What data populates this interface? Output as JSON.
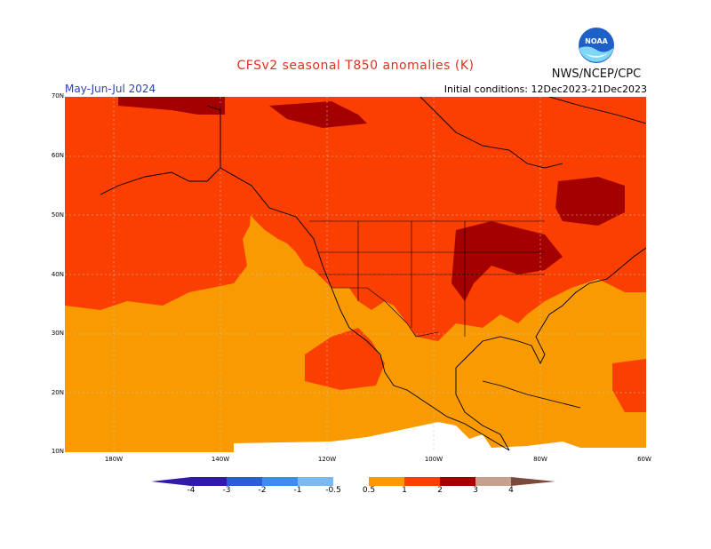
{
  "header": {
    "title": "CFSv2 seasonal T850 anomalies (K)",
    "season": "May-Jun-Jul 2024",
    "initial_conditions": "Initial conditions: 12Dec2023-21Dec2023",
    "agency": "NWS/NCEP/CPC",
    "logo_text": "NOAA"
  },
  "map": {
    "projection": "cylindrical",
    "lon_range": [
      -190,
      -60
    ],
    "lat_range": [
      10,
      70
    ],
    "lat_ticks": [
      "70N",
      "60N",
      "50N",
      "40N",
      "30N",
      "20N",
      "10N"
    ],
    "lon_ticks": [
      "180W",
      "140W",
      "120W",
      "100W",
      "80W",
      "60W"
    ],
    "background_color": "#f99b00",
    "regions": [
      {
        "category": "1 to 2",
        "color": "#fb3f00",
        "description": "northern Pacific, Alaska, Canada"
      },
      {
        "category": "2 to 3",
        "color": "#a50000",
        "description": "northern Canada, Quebec, Great Lakes"
      },
      {
        "category": "0.5 to 1",
        "color": "#f99b00",
        "description": "subtropical Pacific, western US, Gulf of Mexico"
      },
      {
        "category": "-0.5 to 0.5",
        "color": "#ffffff",
        "description": "tropical eastern Pacific"
      }
    ]
  },
  "legend": {
    "labels": [
      "-4",
      "-3",
      "-2",
      "-1",
      "-0.5",
      "0.5",
      "1",
      "2",
      "3",
      "4"
    ],
    "colors": [
      "#3219a7",
      "#2a5fd0",
      "#3d8ee8",
      "#7ab9f2",
      "#ffffff",
      "#f99b00",
      "#fb3f00",
      "#a50000",
      "#c7a08f",
      "#7a4a3a"
    ]
  }
}
